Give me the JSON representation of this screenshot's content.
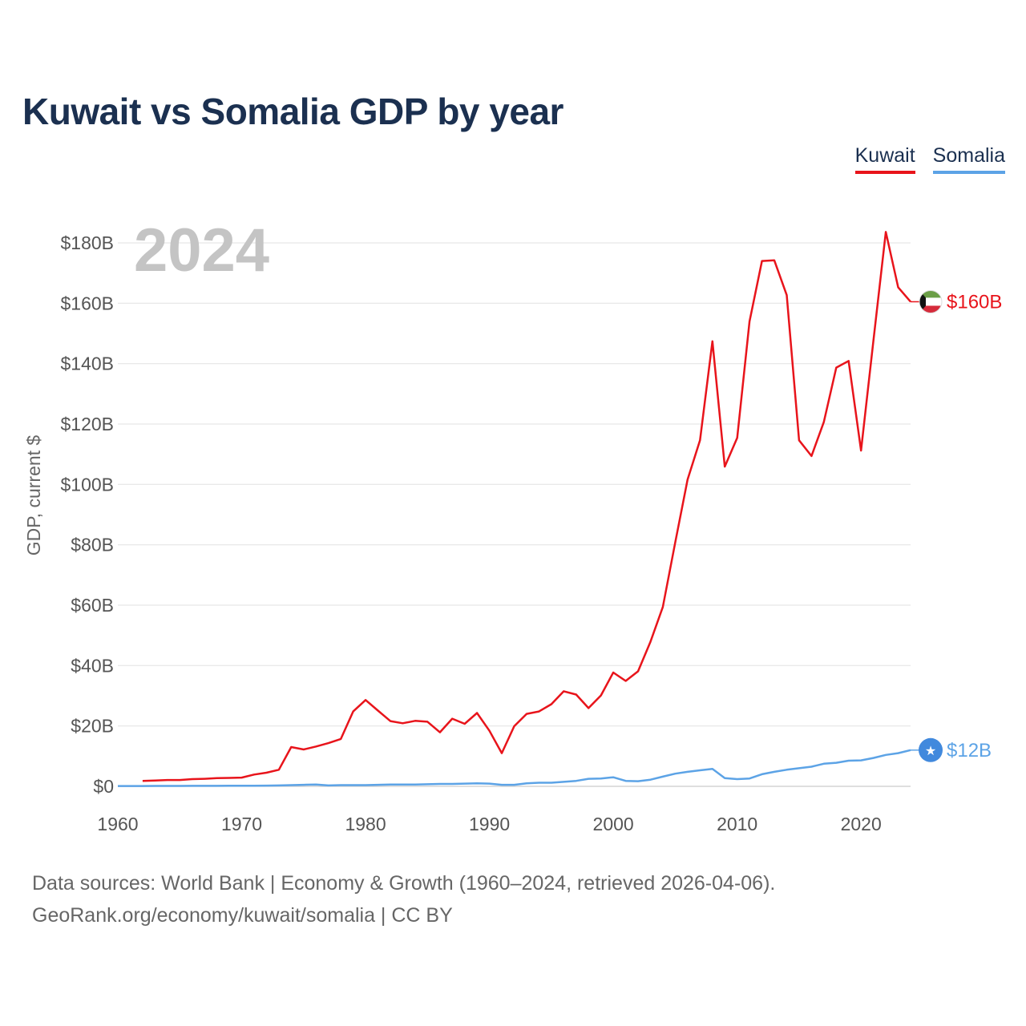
{
  "page": {
    "title": "Kuwait vs Somalia GDP by year"
  },
  "legend": {
    "kuwait": "Kuwait",
    "somalia": "Somalia"
  },
  "footer": {
    "line1": "Data sources: World Bank | Economy & Growth (1960–2024, retrieved 2026-04-06).",
    "line2": "GeoRank.org/economy/kuwait/somalia | CC BY"
  },
  "colors": {
    "kuwait": "#e8141b",
    "somalia": "#5ca3e6",
    "grid": "#e6e6e6"
  },
  "chart_data": {
    "type": "line",
    "title": "Kuwait vs Somalia GDP by year",
    "year_label": "2024",
    "xlabel": "",
    "ylabel": "GDP, current $",
    "xlim": [
      1960,
      2024
    ],
    "ylim": [
      0,
      180
    ],
    "unit": "billion current US$",
    "grid": true,
    "legend_position": "top-right",
    "x_ticks": [
      1960,
      1970,
      1980,
      1990,
      2000,
      2010,
      2020
    ],
    "x_tick_labels": [
      "1960",
      "1970",
      "1980",
      "1990",
      "2000",
      "2010",
      "2020"
    ],
    "y_ticks": [
      0,
      20,
      40,
      60,
      80,
      100,
      120,
      140,
      160,
      180
    ],
    "y_tick_labels": [
      "$0",
      "$20B",
      "$40B",
      "$60B",
      "$80B",
      "$100B",
      "$120B",
      "$140B",
      "$160B",
      "$180B"
    ],
    "series": [
      {
        "name": "Kuwait",
        "color": "#e8141b",
        "end_label": "$160B",
        "end_icon": "kuwait-flag-icon",
        "x": [
          1962,
          1963,
          1964,
          1965,
          1966,
          1967,
          1968,
          1969,
          1970,
          1971,
          1972,
          1973,
          1974,
          1975,
          1976,
          1977,
          1978,
          1979,
          1980,
          1981,
          1982,
          1983,
          1984,
          1985,
          1986,
          1987,
          1988,
          1989,
          1990,
          1991,
          1992,
          1993,
          1994,
          1995,
          1996,
          1997,
          1998,
          1999,
          2000,
          2001,
          2002,
          2003,
          2004,
          2005,
          2006,
          2007,
          2008,
          2009,
          2010,
          2011,
          2012,
          2013,
          2014,
          2015,
          2016,
          2017,
          2018,
          2019,
          2020,
          2021,
          2022,
          2023,
          2024
        ],
        "values": [
          1.8,
          1.9,
          2.1,
          2.1,
          2.4,
          2.5,
          2.7,
          2.8,
          2.9,
          3.9,
          4.5,
          5.5,
          13.0,
          12.2,
          13.2,
          14.3,
          15.7,
          24.8,
          28.6,
          25.1,
          21.6,
          20.9,
          21.7,
          21.4,
          17.9,
          22.4,
          20.7,
          24.3,
          18.4,
          11.0,
          19.9,
          24.0,
          24.8,
          27.2,
          31.5,
          30.4,
          25.9,
          30.1,
          37.7,
          34.9,
          38.1,
          47.9,
          59.4,
          80.8,
          101.6,
          114.6,
          147.4,
          105.9,
          115.4,
          154.0,
          174.0,
          174.2,
          162.7,
          114.6,
          109.4,
          120.7,
          138.7,
          140.9,
          111.2,
          147.5,
          183.6,
          165.3,
          160.5
        ]
      },
      {
        "name": "Somalia",
        "color": "#5ca3e6",
        "end_label": "$12B",
        "end_icon": "somalia-flag-icon",
        "x": [
          1960,
          1961,
          1962,
          1963,
          1964,
          1965,
          1966,
          1967,
          1968,
          1969,
          1970,
          1971,
          1972,
          1973,
          1974,
          1975,
          1976,
          1977,
          1978,
          1979,
          1980,
          1981,
          1982,
          1983,
          1984,
          1985,
          1986,
          1987,
          1988,
          1989,
          1990,
          1991,
          1992,
          1993,
          1994,
          1995,
          1996,
          1997,
          1998,
          1999,
          2000,
          2001,
          2002,
          2003,
          2004,
          2005,
          2006,
          2007,
          2008,
          2009,
          2010,
          2011,
          2012,
          2013,
          2014,
          2015,
          2016,
          2017,
          2018,
          2019,
          2020,
          2021,
          2022,
          2023,
          2024
        ],
        "values": [
          0.1,
          0.1,
          0.1,
          0.12,
          0.13,
          0.14,
          0.15,
          0.16,
          0.17,
          0.18,
          0.2,
          0.22,
          0.25,
          0.3,
          0.4,
          0.5,
          0.6,
          0.3,
          0.4,
          0.4,
          0.4,
          0.5,
          0.6,
          0.6,
          0.6,
          0.7,
          0.8,
          0.8,
          0.9,
          1.0,
          0.9,
          0.5,
          0.5,
          1.0,
          1.2,
          1.2,
          1.5,
          1.8,
          2.5,
          2.6,
          3.0,
          1.8,
          1.7,
          2.2,
          3.2,
          4.2,
          4.8,
          5.3,
          5.8,
          2.7,
          2.4,
          2.6,
          4.0,
          4.8,
          5.5,
          6.0,
          6.5,
          7.5,
          7.8,
          8.5,
          8.6,
          9.4,
          10.4,
          11.0,
          12.0
        ]
      }
    ]
  }
}
